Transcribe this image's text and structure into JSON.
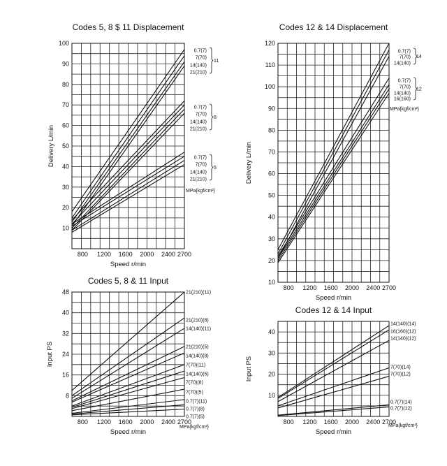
{
  "chart_data": [
    {
      "type": "line",
      "title": "Codes 5, 8 $ 11 Displacement",
      "xlabel": "Speed r/min",
      "ylabel": "Delivery L/min",
      "xlim": [
        600,
        2700
      ],
      "ylim": [
        0,
        100
      ],
      "xticks": [
        800,
        1200,
        1600,
        2000,
        2400,
        2700
      ],
      "yticks": [
        10,
        20,
        30,
        40,
        50,
        60,
        70,
        80,
        90,
        100
      ],
      "unit_label": "MPa{kgf/cm²}",
      "groups": [
        {
          "name": "11",
          "series": [
            {
              "name": "0.7(7)",
              "x": [
                600,
                2700
              ],
              "y": [
                18,
                97
              ]
            },
            {
              "name": "7(70)",
              "x": [
                600,
                2700
              ],
              "y": [
                15,
                94
              ]
            },
            {
              "name": "14(140)",
              "x": [
                600,
                2700
              ],
              "y": [
                13,
                91
              ]
            },
            {
              "name": "21(210)",
              "x": [
                600,
                2700
              ],
              "y": [
                11,
                89
              ]
            }
          ]
        },
        {
          "name": "8",
          "series": [
            {
              "name": "0.7(7)",
              "x": [
                600,
                2700
              ],
              "y": [
                14,
                72
              ]
            },
            {
              "name": "7(70)",
              "x": [
                600,
                2700
              ],
              "y": [
                12,
                70
              ]
            },
            {
              "name": "14(140)",
              "x": [
                600,
                2700
              ],
              "y": [
                10,
                68
              ]
            },
            {
              "name": "21(210)",
              "x": [
                600,
                2700
              ],
              "y": [
                9,
                66
              ]
            }
          ]
        },
        {
          "name": "5",
          "series": [
            {
              "name": "0.7(7)",
              "x": [
                600,
                2700
              ],
              "y": [
                12,
                47
              ]
            },
            {
              "name": "7(70)",
              "x": [
                600,
                2700
              ],
              "y": [
                11,
                45
              ]
            },
            {
              "name": "14(140)",
              "x": [
                600,
                2700
              ],
              "y": [
                9,
                43
              ]
            },
            {
              "name": "21(210)",
              "x": [
                600,
                2700
              ],
              "y": [
                8,
                41
              ]
            }
          ]
        }
      ]
    },
    {
      "type": "line",
      "title": "Codes 12 & 14 Displacement",
      "xlabel": "Speed r/min",
      "ylabel": "Delivery L/min",
      "xlim": [
        600,
        2700
      ],
      "ylim": [
        10,
        120
      ],
      "xticks": [
        800,
        1200,
        1600,
        2000,
        2400,
        2700
      ],
      "yticks": [
        10,
        20,
        30,
        40,
        50,
        60,
        70,
        80,
        90,
        100,
        110,
        120
      ],
      "unit_label": "MPa{kgf/cm²}",
      "groups": [
        {
          "name": "14",
          "series": [
            {
              "name": "0.7(7)",
              "x": [
                600,
                2700
              ],
              "y": [
                25,
                120
              ]
            },
            {
              "name": "7(70)",
              "x": [
                600,
                2700
              ],
              "y": [
                23,
                117
              ]
            },
            {
              "name": "14(140)",
              "x": [
                600,
                2700
              ],
              "y": [
                21,
                114
              ]
            }
          ]
        },
        {
          "name": "12",
          "series": [
            {
              "name": "0.7(7)",
              "x": [
                600,
                2700
              ],
              "y": [
                22,
                104
              ]
            },
            {
              "name": "7(70)",
              "x": [
                600,
                2700
              ],
              "y": [
                21,
                101
              ]
            },
            {
              "name": "14(140)",
              "x": [
                600,
                2700
              ],
              "y": [
                20,
                99
              ]
            },
            {
              "name": "16(160)",
              "x": [
                600,
                2700
              ],
              "y": [
                19,
                97
              ]
            }
          ]
        }
      ]
    },
    {
      "type": "line",
      "title": "Codes 5, 8 & 11 Input",
      "xlabel": "Speed r/min",
      "ylabel": "Input PS",
      "xlim": [
        600,
        2700
      ],
      "ylim": [
        0,
        48
      ],
      "xticks": [
        800,
        1200,
        1600,
        2000,
        2400,
        2700
      ],
      "yticks": [
        8,
        16,
        24,
        32,
        40,
        48
      ],
      "unit_label": "MPa{kgf/cm²}",
      "groups": [
        {
          "name": "",
          "series": [
            {
              "name": "21(210)(11)",
              "x": [
                600,
                2700
              ],
              "y": [
                10,
                48
              ]
            },
            {
              "name": "21(210)(8)",
              "x": [
                600,
                2700
              ],
              "y": [
                8,
                38
              ]
            },
            {
              "name": "14(140)(11)",
              "x": [
                600,
                2700
              ],
              "y": [
                7,
                34
              ]
            },
            {
              "name": "21(210)(5)",
              "x": [
                600,
                2700
              ],
              "y": [
                6,
                27
              ]
            },
            {
              "name": "14(140)(8)",
              "x": [
                600,
                2700
              ],
              "y": [
                5.5,
                24.5
              ]
            },
            {
              "name": "7(70)(11)",
              "x": [
                600,
                2700
              ],
              "y": [
                4,
                20
              ]
            },
            {
              "name": "14(140)(5)",
              "x": [
                600,
                2700
              ],
              "y": [
                3.5,
                17.5
              ]
            },
            {
              "name": "7(70)(8)",
              "x": [
                600,
                2700
              ],
              "y": [
                3,
                15
              ]
            },
            {
              "name": "7(70)(5)",
              "x": [
                600,
                2700
              ],
              "y": [
                2.2,
                10.5
              ]
            },
            {
              "name": "0.7(7)(11)",
              "x": [
                600,
                2700
              ],
              "y": [
                1.2,
                6.5
              ]
            },
            {
              "name": "0.7(7)(8)",
              "x": [
                600,
                2700
              ],
              "y": [
                0.9,
                4.5
              ]
            },
            {
              "name": "0.7(7)(5)",
              "x": [
                600,
                2700
              ],
              "y": [
                0.6,
                2.8
              ]
            }
          ]
        }
      ]
    },
    {
      "type": "line",
      "title": "Codes 12 & 14 Input",
      "xlabel": "Speed r/min",
      "ylabel": "Input PS",
      "xlim": [
        600,
        2700
      ],
      "ylim": [
        0,
        45
      ],
      "xticks": [
        800,
        1200,
        1600,
        2000,
        2400,
        2700
      ],
      "yticks": [
        10,
        20,
        30,
        40
      ],
      "unit_label": "MPa{kgf/cm²}",
      "groups": [
        {
          "name": "",
          "series": [
            {
              "name": "14(140)(14)",
              "x": [
                600,
                2700
              ],
              "y": [
                9,
                43
              ]
            },
            {
              "name": "16(160)(12)",
              "x": [
                600,
                2700
              ],
              "y": [
                8.5,
                41
              ]
            },
            {
              "name": "14(140)(12)",
              "x": [
                600,
                2700
              ],
              "y": [
                7,
                36
              ]
            },
            {
              "name": "7(70)(14)",
              "x": [
                600,
                2700
              ],
              "y": [
                5,
                23
              ]
            },
            {
              "name": "7(70)(12)",
              "x": [
                600,
                2700
              ],
              "y": [
                4,
                19
              ]
            },
            {
              "name": "0.7(7)(14)",
              "x": [
                600,
                2700
              ],
              "y": [
                0.6,
                5.5
              ]
            },
            {
              "name": "0.7(7)(12)",
              "x": [
                600,
                2700
              ],
              "y": [
                0.4,
                4.5
              ]
            }
          ]
        }
      ]
    }
  ]
}
